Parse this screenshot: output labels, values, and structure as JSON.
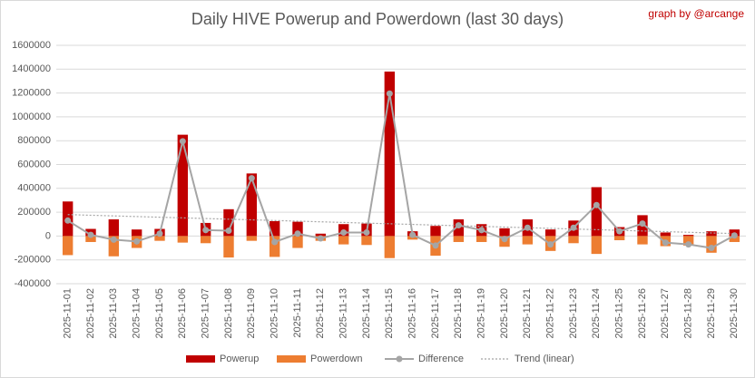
{
  "chart_data": {
    "type": "bar-line",
    "title": "Daily HIVE Powerup and Powerdown (last 30 days)",
    "subtitle": "graph by @arcange",
    "categories": [
      "2025-11-01",
      "2025-11-02",
      "2025-11-03",
      "2025-11-04",
      "2025-11-05",
      "2025-11-06",
      "2025-11-07",
      "2025-11-08",
      "2025-11-09",
      "2025-11-10",
      "2025-11-11",
      "2025-11-12",
      "2025-11-13",
      "2025-11-14",
      "2025-11-15",
      "2025-11-16",
      "2025-11-17",
      "2025-11-18",
      "2025-11-19",
      "2025-11-20",
      "2025-11-21",
      "2025-11-22",
      "2025-11-23",
      "2025-11-24",
      "2025-11-25",
      "2025-11-26",
      "2025-11-27",
      "2025-11-28",
      "2025-11-29",
      "2025-11-30"
    ],
    "series": [
      {
        "name": "Powerup",
        "kind": "bar",
        "color": "#c00000",
        "values": [
          290000,
          60000,
          140000,
          55000,
          60000,
          850000,
          110000,
          225000,
          525000,
          125000,
          120000,
          20000,
          100000,
          105000,
          1380000,
          40000,
          85000,
          140000,
          100000,
          65000,
          140000,
          55000,
          130000,
          410000,
          75000,
          175000,
          30000,
          10000,
          40000,
          55000
        ]
      },
      {
        "name": "Powerdown",
        "kind": "bar",
        "color": "#ed7d31",
        "values": [
          -160000,
          -50000,
          -170000,
          -100000,
          -40000,
          -55000,
          -60000,
          -180000,
          -40000,
          -175000,
          -100000,
          -40000,
          -70000,
          -75000,
          -185000,
          -30000,
          -165000,
          -50000,
          -50000,
          -90000,
          -70000,
          -125000,
          -60000,
          -150000,
          -35000,
          -70000,
          -85000,
          -80000,
          -140000,
          -50000
        ]
      },
      {
        "name": "Difference",
        "kind": "line",
        "color": "#a5a5a5",
        "values": [
          130000,
          10000,
          -30000,
          -45000,
          20000,
          795000,
          50000,
          45000,
          485000,
          -50000,
          20000,
          -20000,
          30000,
          30000,
          1195000,
          10000,
          -80000,
          90000,
          50000,
          -25000,
          70000,
          -70000,
          70000,
          260000,
          40000,
          105000,
          -55000,
          -70000,
          -100000,
          5000
        ]
      },
      {
        "name": "Trend (linear)",
        "kind": "trend",
        "color": "#a5a5a5",
        "values": [
          180000,
          174500,
          169000,
          163500,
          158000,
          152500,
          147000,
          141500,
          136000,
          130500,
          125000,
          119500,
          114000,
          108500,
          103000,
          97500,
          92000,
          86500,
          81000,
          75500,
          70000,
          64500,
          59000,
          53500,
          48000,
          42500,
          37000,
          31500,
          26000,
          20500
        ]
      }
    ],
    "ylim": [
      -400000,
      1600000
    ],
    "yticks": [
      -400000,
      -200000,
      0,
      200000,
      400000,
      600000,
      800000,
      1000000,
      1200000,
      1400000,
      1600000
    ],
    "grid": true
  }
}
